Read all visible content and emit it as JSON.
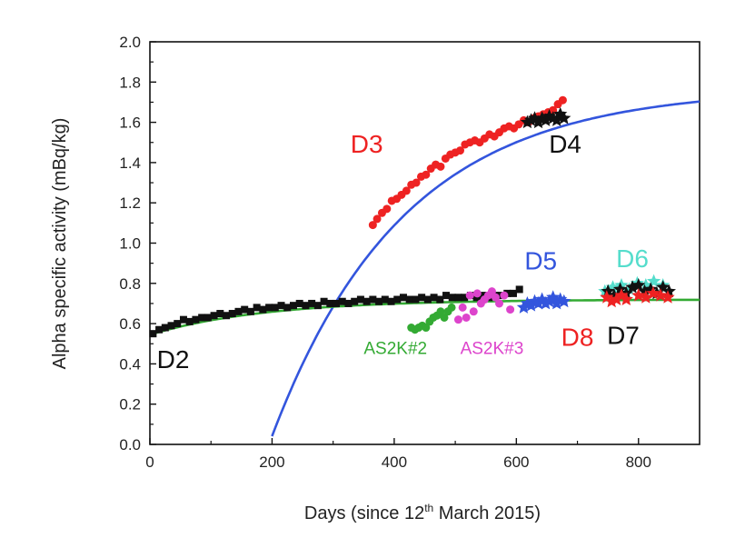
{
  "chart_data": {
    "type": "scatter",
    "xlabel_main": "Days (since 12",
    "xlabel_sup": "th",
    "xlabel_tail": " March 2015)",
    "ylabel": "Alpha specific activity (mBq/kg)",
    "xlim": [
      0,
      900
    ],
    "ylim": [
      0,
      2.0
    ],
    "xticks": [
      0,
      200,
      400,
      600,
      800
    ],
    "xtick_labels": [
      "0",
      "200",
      "400",
      "600",
      "800"
    ],
    "yticks": [
      0,
      0.2,
      0.4,
      0.6,
      0.8,
      1.0,
      1.2,
      1.4,
      1.6,
      1.8,
      2.0
    ],
    "ytick_labels": [
      "0.0",
      "0.2",
      "0.4",
      "0.6",
      "0.8",
      "1.0",
      "1.2",
      "1.4",
      "1.6",
      "1.8",
      "2.0"
    ],
    "fits": [
      {
        "name": "ingrowth-fit",
        "color": "#3355dd",
        "type": "exp",
        "x_start": 200,
        "x_end": 900,
        "a": 1.77,
        "t0": 195,
        "tau": 215
      },
      {
        "name": "flat-fit",
        "color": "#33aa33",
        "type": "exp_rise",
        "x_start": 0,
        "x_end": 900,
        "base": 0.545,
        "amp": 0.175,
        "tau": 190
      }
    ],
    "series": [
      {
        "name": "D2",
        "color": "#111111",
        "marker": "square",
        "x": [
          5,
          15,
          25,
          35,
          45,
          55,
          65,
          75,
          85,
          95,
          105,
          115,
          125,
          135,
          145,
          155,
          165,
          175,
          185,
          195,
          205,
          215,
          225,
          235,
          245,
          255,
          265,
          275,
          285,
          295,
          305,
          315,
          325,
          335,
          345,
          355,
          365,
          375,
          385,
          395,
          405,
          415,
          425,
          435,
          445,
          455,
          465,
          475,
          485,
          495,
          505,
          515,
          525,
          535,
          545,
          555,
          565,
          575,
          585,
          595,
          605
        ],
        "y": [
          0.55,
          0.57,
          0.58,
          0.59,
          0.6,
          0.62,
          0.61,
          0.62,
          0.63,
          0.63,
          0.64,
          0.65,
          0.64,
          0.65,
          0.66,
          0.67,
          0.66,
          0.68,
          0.67,
          0.68,
          0.68,
          0.69,
          0.68,
          0.69,
          0.7,
          0.69,
          0.7,
          0.69,
          0.71,
          0.7,
          0.7,
          0.71,
          0.7,
          0.71,
          0.72,
          0.71,
          0.72,
          0.71,
          0.72,
          0.71,
          0.72,
          0.73,
          0.72,
          0.72,
          0.73,
          0.72,
          0.73,
          0.72,
          0.74,
          0.73,
          0.73,
          0.73,
          0.74,
          0.73,
          0.74,
          0.73,
          0.74,
          0.74,
          0.75,
          0.75,
          0.77
        ]
      },
      {
        "name": "D3",
        "color": "#ee2222",
        "marker": "circle",
        "x": [
          365,
          372,
          380,
          388,
          396,
          404,
          412,
          420,
          428,
          436,
          444,
          452,
          460,
          468,
          476,
          484,
          492,
          500,
          508,
          516,
          524,
          532,
          540,
          548,
          556,
          564,
          572,
          580,
          588,
          596,
          604,
          612,
          620,
          628,
          636,
          644,
          652,
          660,
          668,
          676
        ],
        "y": [
          1.09,
          1.12,
          1.15,
          1.17,
          1.21,
          1.22,
          1.24,
          1.26,
          1.29,
          1.3,
          1.33,
          1.34,
          1.37,
          1.39,
          1.38,
          1.42,
          1.44,
          1.45,
          1.46,
          1.49,
          1.5,
          1.51,
          1.5,
          1.52,
          1.54,
          1.53,
          1.55,
          1.57,
          1.58,
          1.57,
          1.59,
          1.61,
          1.6,
          1.62,
          1.63,
          1.64,
          1.65,
          1.66,
          1.69,
          1.71
        ]
      },
      {
        "name": "D4",
        "color": "#111111",
        "marker": "star",
        "x": [
          618,
          624,
          630,
          636,
          642,
          648,
          654,
          660,
          666,
          672,
          678
        ],
        "y": [
          1.6,
          1.61,
          1.62,
          1.6,
          1.62,
          1.61,
          1.63,
          1.62,
          1.61,
          1.64,
          1.62
        ]
      },
      {
        "name": "AS2K#2",
        "color": "#33aa33",
        "marker": "circle",
        "x": [
          428,
          434,
          440,
          446,
          452,
          458,
          464,
          470,
          476,
          482,
          488,
          494
        ],
        "y": [
          0.58,
          0.57,
          0.58,
          0.59,
          0.58,
          0.61,
          0.63,
          0.64,
          0.66,
          0.63,
          0.66,
          0.68
        ]
      },
      {
        "name": "AS2K#3",
        "color": "#dd44cc",
        "marker": "circle",
        "x": [
          505,
          512,
          518,
          524,
          530,
          536,
          542,
          548,
          554,
          560,
          566,
          572,
          580,
          590
        ],
        "y": [
          0.62,
          0.68,
          0.63,
          0.74,
          0.66,
          0.75,
          0.7,
          0.72,
          0.74,
          0.76,
          0.73,
          0.7,
          0.74,
          0.67
        ]
      },
      {
        "name": "D5",
        "color": "#3355dd",
        "marker": "star",
        "x": [
          612,
          618,
          624,
          630,
          636,
          642,
          648,
          654,
          660,
          666,
          672,
          678
        ],
        "y": [
          0.68,
          0.7,
          0.69,
          0.71,
          0.7,
          0.72,
          0.7,
          0.71,
          0.73,
          0.7,
          0.72,
          0.71
        ]
      },
      {
        "name": "D6",
        "color": "#55ddcc",
        "marker": "star",
        "x": [
          745,
          758,
          772,
          785,
          798,
          812,
          825,
          840
        ],
        "y": [
          0.76,
          0.78,
          0.79,
          0.77,
          0.8,
          0.79,
          0.81,
          0.79
        ]
      },
      {
        "name": "D7",
        "color": "#111111",
        "marker": "star",
        "x": [
          750,
          760,
          770,
          780,
          790,
          800,
          810,
          820,
          830,
          840,
          850
        ],
        "y": [
          0.76,
          0.74,
          0.77,
          0.75,
          0.78,
          0.79,
          0.76,
          0.77,
          0.75,
          0.78,
          0.76
        ]
      },
      {
        "name": "D8",
        "color": "#ee2222",
        "marker": "star",
        "x": [
          748,
          756,
          764,
          772,
          780,
          800,
          812,
          824,
          836,
          848
        ],
        "y": [
          0.73,
          0.71,
          0.72,
          0.74,
          0.72,
          0.74,
          0.73,
          0.75,
          0.74,
          0.73
        ]
      }
    ],
    "labels": [
      {
        "name": "D3",
        "text": "D3",
        "color": "#ee2222",
        "x": 355,
        "y": 1.45,
        "size": 28
      },
      {
        "name": "D4",
        "text": "D4",
        "color": "#111111",
        "x": 680,
        "y": 1.45,
        "size": 28
      },
      {
        "name": "D2",
        "text": "D2",
        "color": "#111111",
        "x": 38,
        "y": 0.38,
        "size": 28
      },
      {
        "name": "D5",
        "text": "D5",
        "color": "#3355dd",
        "x": 640,
        "y": 0.87,
        "size": 28
      },
      {
        "name": "D6",
        "text": "D6",
        "color": "#55ddcc",
        "x": 790,
        "y": 0.88,
        "size": 28
      },
      {
        "name": "D8",
        "text": "D8",
        "color": "#ee2222",
        "x": 700,
        "y": 0.49,
        "size": 28
      },
      {
        "name": "D7",
        "text": "D7",
        "color": "#111111",
        "x": 775,
        "y": 0.5,
        "size": 28
      },
      {
        "name": "AS2K#2",
        "text": "AS2K#2",
        "color": "#33aa33",
        "x": 402,
        "y": 0.45,
        "size": 19
      },
      {
        "name": "AS2K#3",
        "text": "AS2K#3",
        "color": "#dd44cc",
        "x": 560,
        "y": 0.45,
        "size": 19
      }
    ]
  }
}
